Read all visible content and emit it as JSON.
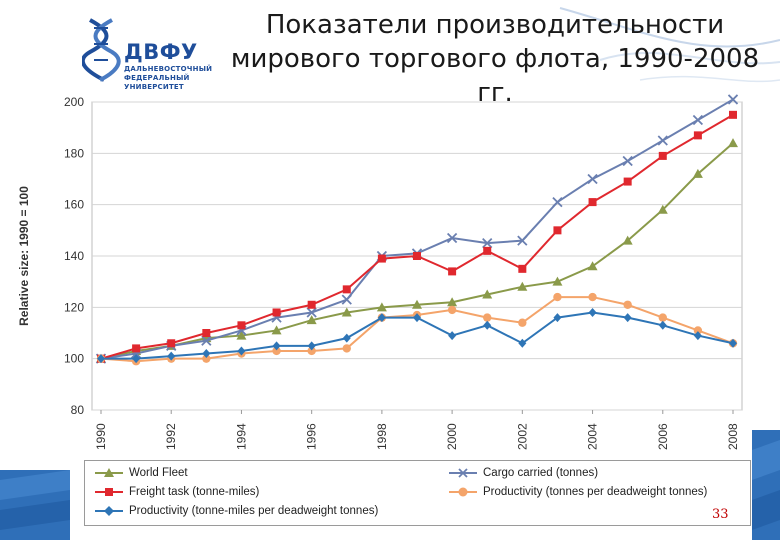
{
  "header": {
    "title_line1": "Показатели производительности",
    "title_line2": "мирового торгового флота, 1990-2008 гг.",
    "logo": {
      "name": "ДВФУ",
      "sub1": "ДАЛЬНЕВОСТОЧНЫЙ",
      "sub2": "ФЕДЕРАЛЬНЫЙ",
      "sub3": "УНИВЕРСИТЕТ"
    }
  },
  "page_number": "33",
  "colors": {
    "world_fleet": "#8a9a4a",
    "cargo": "#6a7fb0",
    "freight": "#e0282e",
    "productivity_dwt": "#f4a46a",
    "productivity_tm": "#2e75b6",
    "brand": "#1f4e9a"
  },
  "chart_data": {
    "type": "line",
    "ylabel": "Relative size: 1990 = 100",
    "xlabel": "",
    "ylim": [
      80,
      200
    ],
    "yticks": [
      80,
      100,
      120,
      140,
      160,
      180,
      200
    ],
    "x": [
      1990,
      1991,
      1992,
      1993,
      1994,
      1995,
      1996,
      1997,
      1998,
      1999,
      2000,
      2001,
      2002,
      2003,
      2004,
      2005,
      2006,
      2007,
      2008
    ],
    "xtick_labels": [
      "1990",
      "1992",
      "1994",
      "1996",
      "1998",
      "2000",
      "2002",
      "2004",
      "2006",
      "2008"
    ],
    "grid": "horizontal",
    "legend_position": "bottom",
    "series": [
      {
        "name": "World Fleet",
        "marker": "triangle",
        "color_key": "world_fleet",
        "values": [
          100,
          103,
          105,
          108,
          109,
          111,
          115,
          118,
          120,
          121,
          122,
          125,
          128,
          130,
          136,
          146,
          158,
          172,
          184
        ]
      },
      {
        "name": "Cargo carried (tonnes)",
        "marker": "x",
        "color_key": "cargo",
        "values": [
          100,
          102,
          105,
          107,
          111,
          116,
          118,
          123,
          140,
          141,
          147,
          145,
          146,
          161,
          170,
          177,
          185,
          193,
          201
        ]
      },
      {
        "name": "Freight task (tonne-miles)",
        "marker": "square",
        "color_key": "freight",
        "values": [
          100,
          104,
          106,
          110,
          113,
          118,
          121,
          127,
          139,
          140,
          134,
          142,
          135,
          150,
          161,
          169,
          179,
          187,
          195
        ]
      },
      {
        "name": "Productivity (tonnes per deadweight tonnes)",
        "marker": "circle",
        "color_key": "productivity_dwt",
        "values": [
          100,
          99,
          100,
          100,
          102,
          103,
          103,
          104,
          116,
          117,
          119,
          116,
          114,
          124,
          124,
          121,
          116,
          111,
          106
        ]
      },
      {
        "name": "Productivity (tonne-miles per deadweight tonnes)",
        "marker": "diamond",
        "color_key": "productivity_tm",
        "values": [
          100,
          100,
          101,
          102,
          103,
          105,
          105,
          108,
          116,
          116,
          109,
          113,
          106,
          116,
          118,
          116,
          113,
          109,
          106
        ]
      }
    ]
  }
}
